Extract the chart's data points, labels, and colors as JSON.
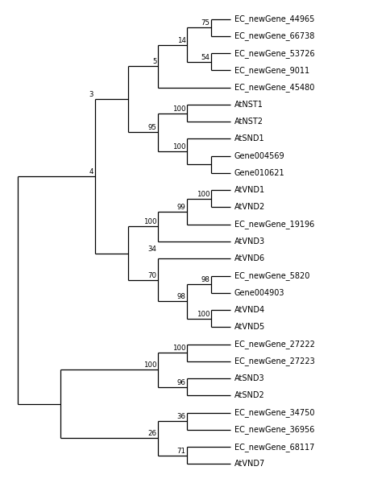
{
  "taxa": [
    "EC_newGene_44965",
    "EC_newGene_66738",
    "EC_newGene_53726",
    "EC_newGene_9011",
    "EC_newGene_45480",
    "AtNST1",
    "AtNST2",
    "AtSND1",
    "Gene004569",
    "Gene010621",
    "AtVND1",
    "AtVND2",
    "EC_newGene_19196",
    "AtVND3",
    "AtVND6",
    "EC_newGene_5820",
    "Gene004903",
    "AtVND4",
    "AtVND5",
    "EC_newGene_27222",
    "EC_newGene_27223",
    "AtSND3",
    "AtSND2",
    "EC_newGene_34750",
    "EC_newGene_36956",
    "EC_newGene_68117",
    "AtVND7"
  ],
  "figsize": [
    4.84,
    6.0
  ],
  "dpi": 100,
  "bg_color": "white",
  "line_color": "black",
  "text_color": "black",
  "font_size": 7.0,
  "bootstrap_font_size": 6.2,
  "line_width": 0.9
}
